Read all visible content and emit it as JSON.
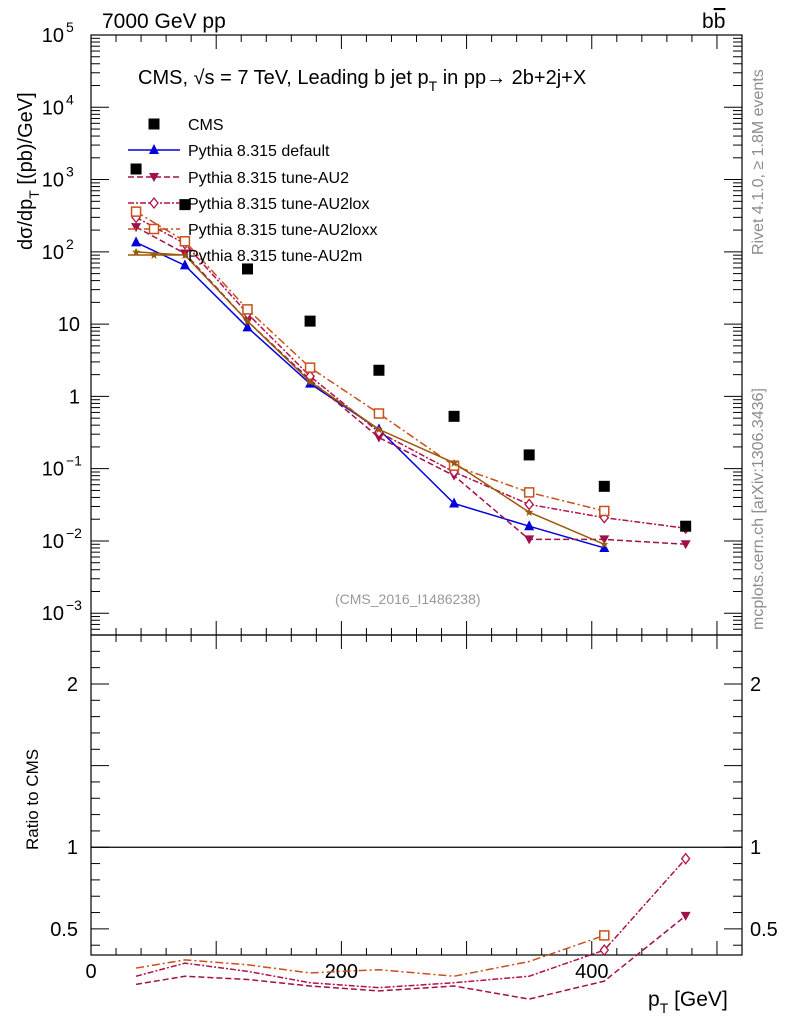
{
  "header": {
    "left": "7000 GeV pp",
    "right_prefix": "b",
    "right_bar": "b"
  },
  "sidebar": {
    "rivet": "Rivet 4.1.0, ≥ 1.8M events",
    "mcplots": "mcplots.cern.ch [arXiv:1306.3436]"
  },
  "plot": {
    "title": "CMS, √s = 7 TeV, Leading b jet p",
    "title_sub": "T",
    "title_tail": " in pp→  2b+2j+X",
    "ylabel_main": "dσ/dp",
    "ylabel_sub": "T",
    "ylabel_tail": " [(pb)/GeV]",
    "ylabel_ratio": "Ratio to CMS",
    "xlabel_main": "p",
    "xlabel_sub": "T",
    "xlabel_tail": " [GeV]",
    "watermark": "(CMS_2016_I1486238)"
  },
  "ticks": {
    "x": [
      "0",
      "200",
      "400"
    ],
    "y_top": [
      "10",
      "10",
      "10",
      "10",
      "10",
      "1",
      "10",
      "10",
      "10"
    ],
    "y_top_exp": [
      "5",
      "4",
      "3",
      "2",
      "",
      "",
      "−1",
      "−2",
      "−3"
    ],
    "y_ratio": [
      "2",
      "1",
      "0.5"
    ]
  },
  "chart_data": {
    "type": "line",
    "x_range": [
      0,
      520
    ],
    "y_range": [
      0.0005,
      100000
    ],
    "y_scale": "log",
    "ratio_range": [
      0.34,
      2.3
    ],
    "legend": [
      "CMS",
      "Pythia 8.315 default",
      "Pythia 8.315 tune-AU2",
      "Pythia 8.315 tune-AU2lox",
      "Pythia 8.315 tune-AU2loxx",
      "Pythia 8.315 tune-AU2m"
    ],
    "cms": {
      "x": [
        36,
        75,
        125,
        175,
        230,
        290,
        350,
        410,
        475
      ],
      "y": [
        1400,
        450,
        58,
        11,
        2.3,
        0.53,
        0.155,
        0.057,
        0.016
      ]
    },
    "series": [
      {
        "name": "Pythia 8.315 default",
        "color": "#0000dd",
        "dash": "",
        "marker": "triangle-up",
        "x": [
          36,
          75,
          125,
          175,
          230,
          290,
          350,
          410
        ],
        "y": [
          135,
          65,
          9,
          1.5,
          0.35,
          0.033,
          0.016,
          0.008
        ]
      },
      {
        "name": "Pythia 8.315 tune-AU2",
        "color": "#a0104a",
        "dash": "6,3",
        "marker": "triangle-down",
        "x": [
          36,
          75,
          125,
          175,
          230,
          290,
          350,
          410,
          475
        ],
        "y": [
          220,
          95,
          11,
          1.7,
          0.27,
          0.08,
          0.0105,
          0.0105,
          0.009
        ],
        "ratio": [
          0.16,
          0.21,
          0.19,
          0.15,
          0.12,
          0.15,
          0.07,
          0.18,
          0.58
        ]
      },
      {
        "name": "Pythia 8.315 tune-AU2lox",
        "color": "#b0124a",
        "dash": "6,2,2,2",
        "marker": "diamond-open",
        "x": [
          36,
          75,
          125,
          175,
          230,
          290,
          350,
          410,
          475
        ],
        "y": [
          300,
          130,
          14,
          1.9,
          0.32,
          0.09,
          0.032,
          0.021,
          0.015
        ],
        "ratio": [
          0.21,
          0.29,
          0.24,
          0.17,
          0.14,
          0.17,
          0.21,
          0.37,
          0.93
        ]
      },
      {
        "name": "Pythia 8.315 tune-AU2loxx",
        "color": "#c8501a",
        "dash": "8,3,2,3",
        "marker": "square-open",
        "x": [
          36,
          75,
          125,
          175,
          230,
          290,
          350,
          410
        ],
        "y": [
          360,
          140,
          16,
          2.5,
          0.58,
          0.11,
          0.047,
          0.026
        ],
        "ratio": [
          0.26,
          0.31,
          0.28,
          0.23,
          0.25,
          0.21,
          0.3,
          0.46
        ]
      },
      {
        "name": "Pythia 8.315 tune-AU2m",
        "color": "#9a5a0a",
        "dash": "",
        "marker": "star",
        "x": [
          36,
          75,
          125,
          175,
          230,
          290,
          350,
          410
        ],
        "y": [
          100,
          90,
          11,
          1.6,
          0.35,
          0.12,
          0.025,
          0.009
        ]
      }
    ]
  }
}
